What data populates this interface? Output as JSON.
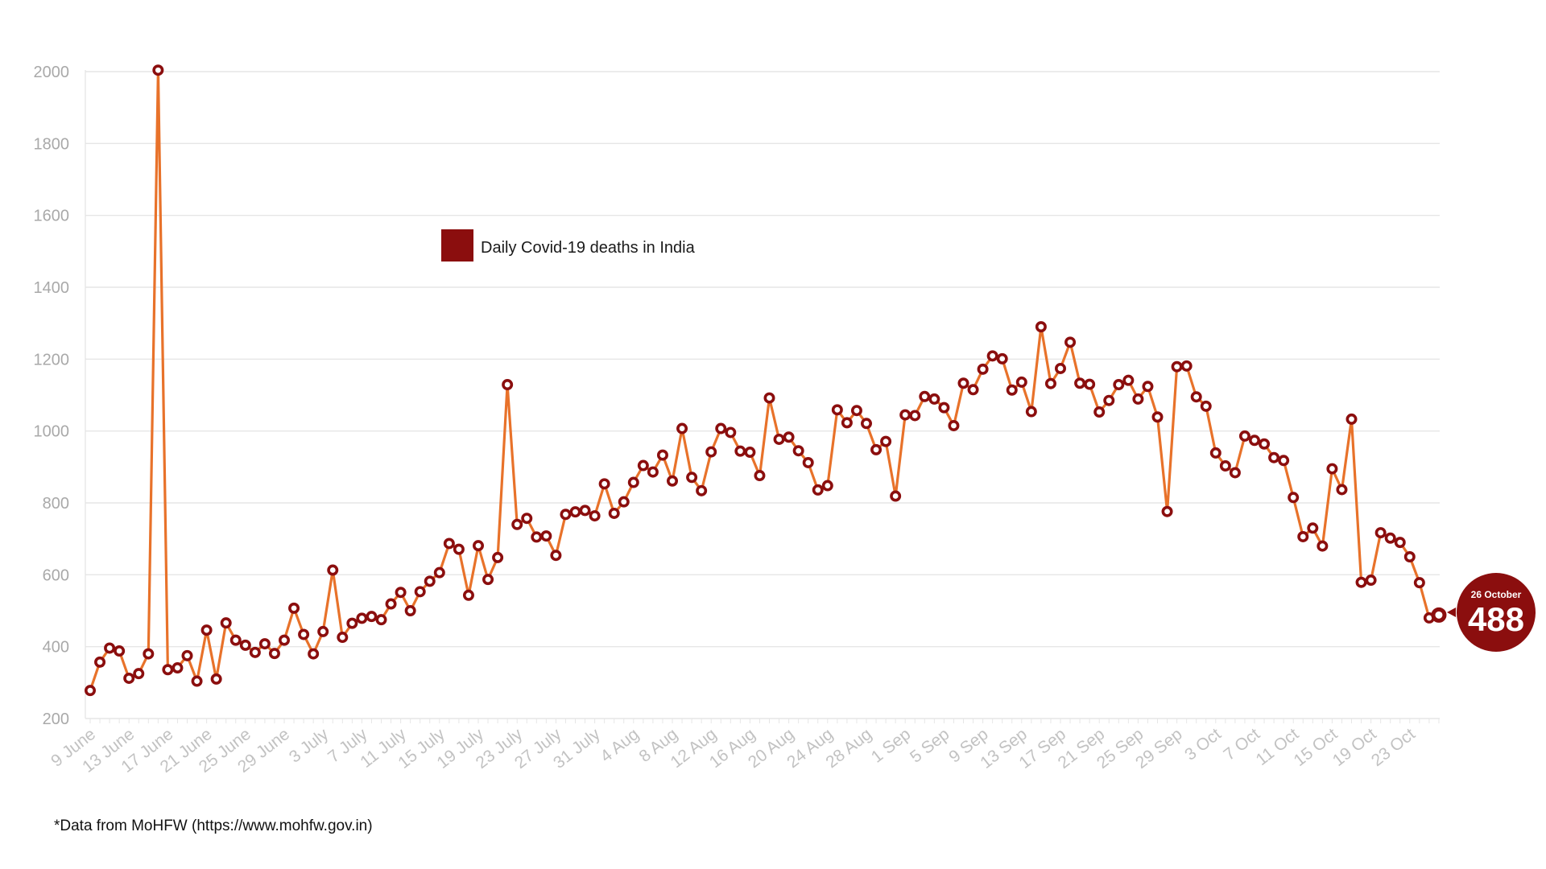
{
  "chart_data": {
    "type": "line",
    "series": [
      {
        "name": "Daily Covid-19 deaths in India",
        "start_label": "9 June",
        "values": [
          278,
          357,
          396,
          388,
          312,
          325,
          380,
          2004,
          336,
          341,
          375,
          304,
          446,
          310,
          466,
          418,
          404,
          384,
          408,
          381,
          418,
          507,
          434,
          380,
          442,
          613,
          426,
          465,
          479,
          484,
          475,
          519,
          551,
          500,
          553,
          582,
          606,
          687,
          671,
          543,
          681,
          587,
          648,
          1129,
          740,
          757,
          705,
          708,
          654,
          768,
          775,
          779,
          764,
          853,
          771,
          803,
          857,
          904,
          886,
          933,
          861,
          1007,
          871,
          834,
          942,
          1007,
          996,
          944,
          941,
          876,
          1092,
          977,
          983,
          945,
          912,
          836,
          848,
          1059,
          1023,
          1057,
          1021,
          948,
          971,
          819,
          1045,
          1043,
          1096,
          1089,
          1065,
          1015,
          1133,
          1115,
          1172,
          1209,
          1201,
          1114,
          1136,
          1054,
          1290,
          1132,
          1174,
          1247,
          1133,
          1130,
          1053,
          1085,
          1129,
          1141,
          1089,
          1124,
          1039,
          776,
          1179,
          1181,
          1095,
          1069,
          939,
          903,
          884,
          986,
          974,
          964,
          926,
          918,
          815,
          706,
          730,
          680,
          895,
          837,
          1033,
          579,
          585,
          717,
          702,
          690,
          650,
          578,
          480,
          488
        ]
      }
    ],
    "x_tick_labels": [
      "9 June",
      "13 June",
      "17 June",
      "21 June",
      "25 June",
      "29 June",
      "3 July",
      "7 July",
      "11 July",
      "15 July",
      "19 July",
      "23 July",
      "27 July",
      "31 July",
      "4 Aug",
      "8 Aug",
      "12 Aug",
      "16 Aug",
      "20 Aug",
      "24 Aug",
      "28 Aug",
      "1 Sep",
      "5 Sep",
      "9 Sep",
      "13 Sep",
      "17 Sep",
      "21 Sep",
      "25 Sep",
      "29 Sep",
      "3 Oct",
      "7 Oct",
      "11 Oct",
      "15 Oct",
      "19 Oct",
      "23 Oct"
    ],
    "y_ticks": [
      200,
      400,
      600,
      800,
      1000,
      1200,
      1400,
      1600,
      1800,
      2000
    ],
    "ylim": [
      200,
      2000
    ],
    "grid": "horizontal",
    "legend": {
      "label": "Daily Covid-19 deaths in India",
      "placement": "upper-middle"
    },
    "annotation": {
      "date": "26 October",
      "value": "488"
    },
    "source_note": "*Data from MoHFW (https://www.mohfw.gov.in)",
    "colors": {
      "line": "#e8722a",
      "marker": "#8b0e0e",
      "legend_swatch": "#8b0e0e",
      "grid": "#e6e6e6",
      "callout": "#8b0e0e"
    }
  }
}
